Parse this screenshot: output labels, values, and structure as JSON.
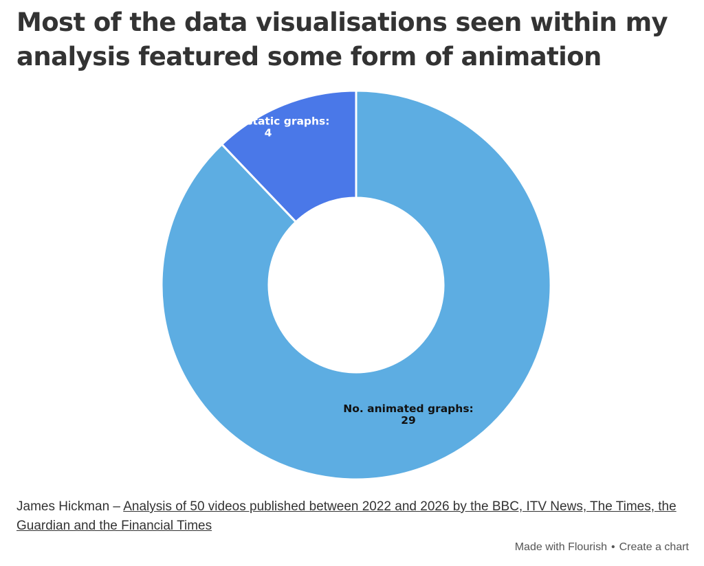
{
  "title": "Most of the data visualisations seen within my analysis featured some form of animation",
  "chart_data": {
    "type": "pie",
    "variant": "donut",
    "start_angle_deg": 0,
    "direction": "counterclockwise-from-top",
    "slices": [
      {
        "label": "No. animated graphs:",
        "value": 29,
        "color": "#5dade2",
        "label_color": "#111111"
      },
      {
        "label": "No. of static graphs:",
        "value": 4,
        "color": "#4a78e8",
        "label_color": "#ffffff"
      }
    ]
  },
  "footer": {
    "author": "James Hickman –",
    "source_link": "Analysis of 50 videos published between 2022 and 2026 by the BBC, ITV News, The Times, the Guardian and the Financial Times"
  },
  "credit": {
    "made_with": "Made with Flourish",
    "separator": "•",
    "create": "Create a chart"
  }
}
